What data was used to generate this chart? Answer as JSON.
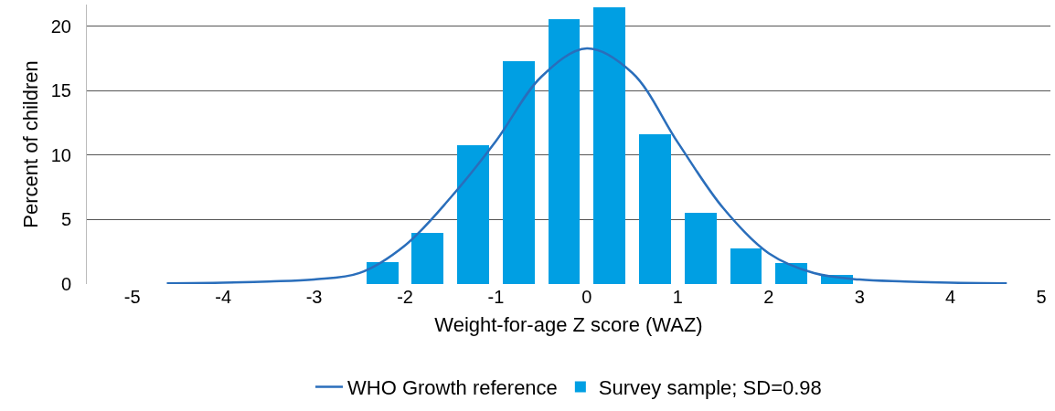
{
  "chart_data": {
    "type": "histogram",
    "xlabel": "Weight-for-age Z score (WAZ)",
    "ylabel": "Percent of children",
    "bins": [
      -2.5,
      -2,
      -1.5,
      -1,
      -0.5,
      0,
      0.5,
      1,
      1.5,
      2,
      2.5,
      3
    ],
    "series": [
      {
        "name": "WHO Growth reference",
        "type": "line",
        "color": "#2a6ebb",
        "x": [
          -4.62,
          -4,
          -3.5,
          -3,
          -2.5,
          -2,
          -1.5,
          -1,
          -0.5,
          0,
          0.5,
          1,
          1.5,
          2,
          2.5,
          3,
          3.5,
          4,
          4.62
        ],
        "values": [
          0.05,
          0.1,
          0.2,
          0.36,
          0.86,
          3.0,
          6.7,
          11.1,
          16.1,
          18.3,
          16.4,
          11.0,
          5.9,
          2.4,
          0.85,
          0.35,
          0.2,
          0.1,
          0.05
        ]
      },
      {
        "name": "Survey sample; SD=0.98",
        "color": "#009fe3",
        "values": [
          1.7,
          4.0,
          10.8,
          17.3,
          20.6,
          21.5,
          11.6,
          5.5,
          2.8,
          1.6,
          0.7
        ]
      }
    ],
    "xlim": [
      -5.5,
      5.1
    ],
    "xticks": [
      -5,
      -4,
      -3,
      -2,
      -1,
      0,
      1,
      2,
      3,
      4,
      5
    ],
    "ylim": [
      0,
      21.7
    ],
    "yticks": [
      0,
      5,
      10,
      15,
      20
    ],
    "grid": "y",
    "legend": "bottom"
  }
}
